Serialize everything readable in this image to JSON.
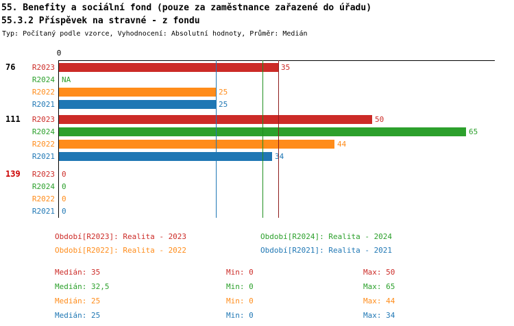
{
  "header": {
    "title_line1": "55. Benefity a sociální fond (pouze za zaměstnance zařazené do úřadu)",
    "title_line2": "55.3.2 Příspěvek na stravné - z fondu",
    "type_info": "Typ: Počítaný podle vzorce, Vyhodnocení: Absolutní hodnoty, Průměr: Medián"
  },
  "colors": {
    "R2023": "#cc2b27",
    "R2024": "#2ca02c",
    "R2022": "#ff8c1a",
    "R2021": "#1f77b4",
    "median_R2023": "#8e1b1b",
    "median_R2024": "#1f8f1f",
    "median_R2022": "#ff8c1a",
    "median_R2021": "#1f77b4",
    "group_label": "#000000",
    "group_label_highlight": "#cc0000",
    "axis": "#000000"
  },
  "chart_data": {
    "type": "bar",
    "orientation": "horizontal",
    "x_axis": {
      "origin_label": "0",
      "min": 0,
      "max": 65
    },
    "series": [
      "R2023",
      "R2024",
      "R2022",
      "R2021"
    ],
    "groups": [
      {
        "label": "76",
        "highlighted": false,
        "bars": [
          {
            "series": "R2023",
            "value": 35,
            "display": "35"
          },
          {
            "series": "R2024",
            "value": null,
            "display": "NA"
          },
          {
            "series": "R2022",
            "value": 25,
            "display": "25"
          },
          {
            "series": "R2021",
            "value": 25,
            "display": "25"
          }
        ]
      },
      {
        "label": "111",
        "highlighted": false,
        "bars": [
          {
            "series": "R2023",
            "value": 50,
            "display": "50"
          },
          {
            "series": "R2024",
            "value": 65,
            "display": "65"
          },
          {
            "series": "R2022",
            "value": 44,
            "display": "44"
          },
          {
            "series": "R2021",
            "value": 34,
            "display": "34"
          }
        ]
      },
      {
        "label": "139",
        "highlighted": true,
        "bars": [
          {
            "series": "R2023",
            "value": 0,
            "display": "0"
          },
          {
            "series": "R2024",
            "value": 0,
            "display": "0"
          },
          {
            "series": "R2022",
            "value": 0,
            "display": "0"
          },
          {
            "series": "R2021",
            "value": 0,
            "display": "0"
          }
        ]
      }
    ],
    "median_lines": [
      {
        "series": "R2022",
        "value": 25
      },
      {
        "series": "R2021",
        "value": 25
      },
      {
        "series": "R2024",
        "value": 32.5
      },
      {
        "series": "R2023",
        "value": 35
      }
    ]
  },
  "legend": {
    "items": [
      {
        "series": "R2023",
        "label": "Období[R2023]: Realita - 2023"
      },
      {
        "series": "R2024",
        "label": "Období[R2024]: Realita - 2024"
      },
      {
        "series": "R2022",
        "label": "Období[R2022]: Realita - 2022"
      },
      {
        "series": "R2021",
        "label": "Období[R2021]: Realita - 2021"
      }
    ]
  },
  "stats": {
    "rows": [
      {
        "series": "R2023",
        "median": "Medián: 35",
        "min": "Min: 0",
        "max": "Max: 50"
      },
      {
        "series": "R2024",
        "median": "Medián: 32,5",
        "min": "Min: 0",
        "max": "Max: 65"
      },
      {
        "series": "R2022",
        "median": "Medián: 25",
        "min": "Min: 0",
        "max": "Max: 44"
      },
      {
        "series": "R2021",
        "median": "Medián: 25",
        "min": "Min: 0",
        "max": "Max: 34"
      }
    ]
  }
}
